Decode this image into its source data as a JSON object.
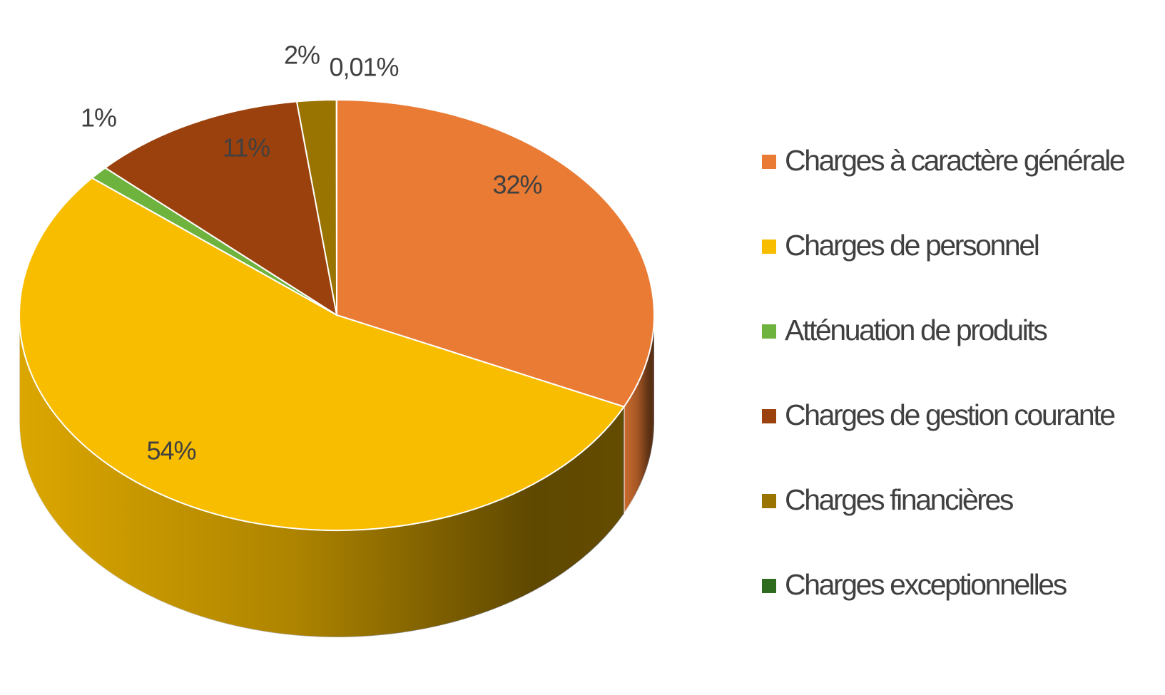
{
  "chart_data": {
    "type": "pie",
    "categories": [
      "Charges à caractère générale",
      "Charges de personnel",
      "Atténuation de produits",
      "Charges de gestion courante",
      "Charges financières",
      "Charges exceptionnelles"
    ],
    "values": [
      32,
      54,
      1,
      11,
      2,
      0.01
    ],
    "value_labels": [
      "32%",
      "54%",
      "1%",
      "11%",
      "2%",
      "0,01%"
    ],
    "colors": [
      "#e97b34",
      "#f9bd00",
      "#6fb33f",
      "#9b410d",
      "#9a7400",
      "#2f6b1f"
    ],
    "legend": "right"
  }
}
